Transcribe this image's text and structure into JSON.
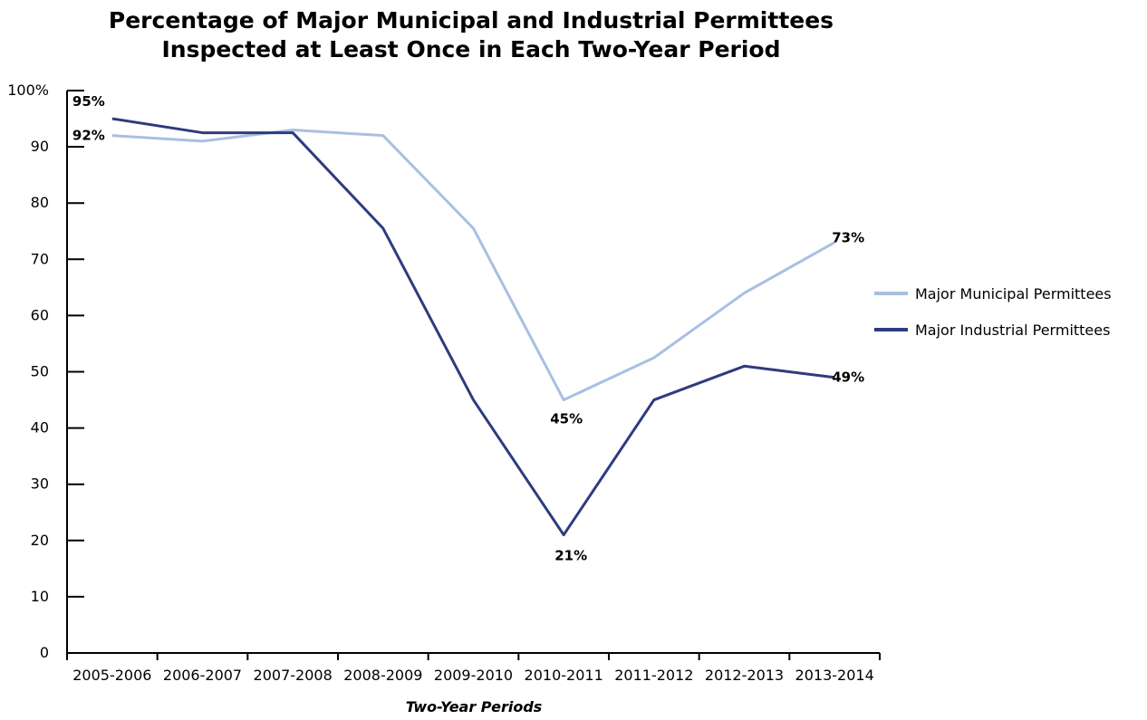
{
  "chart_data": {
    "type": "line",
    "title": [
      "Percentage of Major Municipal and Industrial Permittees",
      "Inspected at Least Once in Each Two-Year Period"
    ],
    "xlabel": "Two-Year Periods",
    "ylabel": "",
    "categories": [
      "2005-2006",
      "2006-2007",
      "2007-2008",
      "2008-2009",
      "2009-2010",
      "2010-2011",
      "2011-2012",
      "2012-2013",
      "2013-2014"
    ],
    "ylim": [
      0,
      100
    ],
    "y_ticks": [
      "0",
      "10",
      "20",
      "30",
      "40",
      "50",
      "60",
      "70",
      "80",
      "90",
      "100%"
    ],
    "grid": false,
    "legend_position": "right",
    "series": [
      {
        "name": "Major Municipal Permittees",
        "color": "#a9bfe3",
        "values": [
          92,
          91,
          93,
          92,
          75.5,
          45,
          52.5,
          64,
          73
        ]
      },
      {
        "name": "Major Industrial Permittees",
        "color": "#2e3b7e",
        "values": [
          95,
          92.5,
          92.5,
          75.5,
          45,
          21,
          45,
          51,
          49
        ]
      }
    ],
    "annotations": [
      "95%",
      "92%",
      "45%",
      "21%",
      "73%",
      "49%"
    ]
  }
}
